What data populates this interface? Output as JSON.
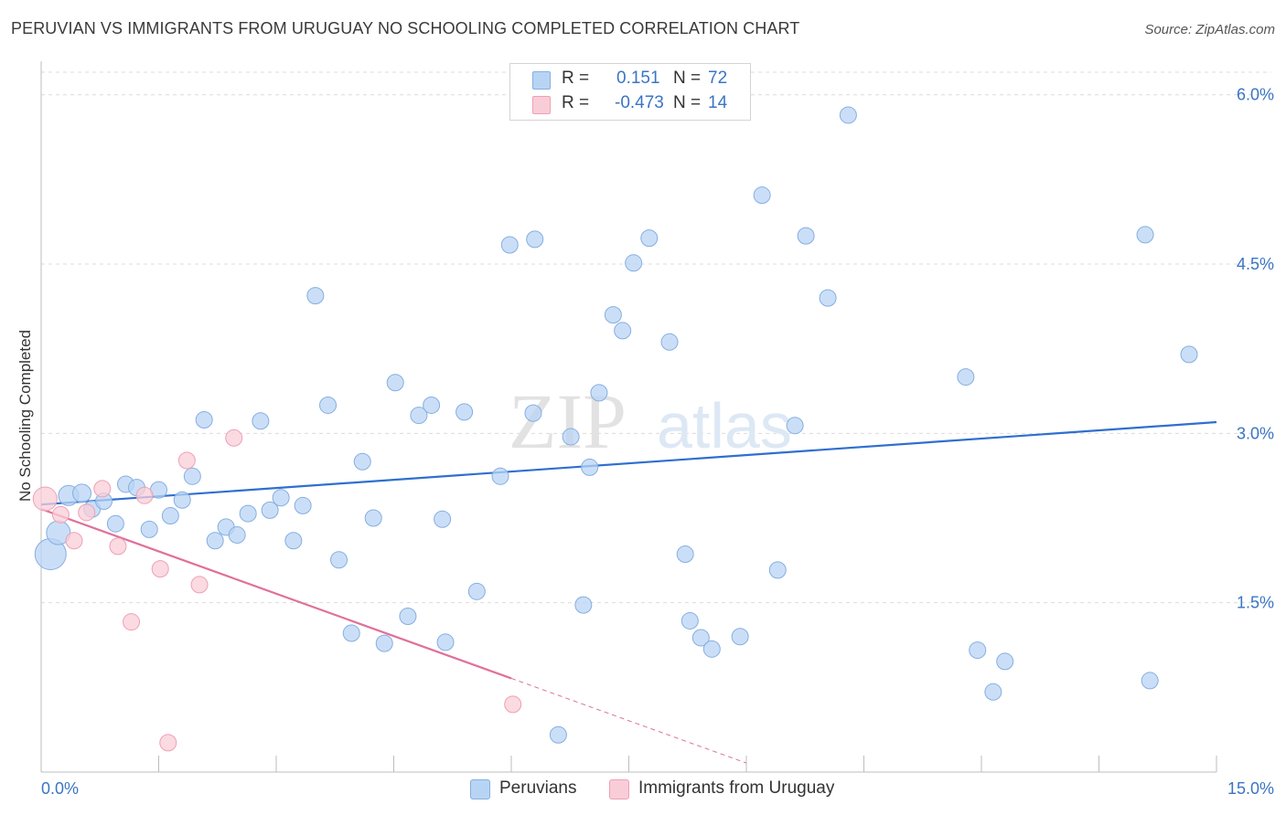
{
  "header": {
    "title": "PERUVIAN VS IMMIGRANTS FROM URUGUAY NO SCHOOLING COMPLETED CORRELATION CHART",
    "source": "Source: ZipAtlas.com"
  },
  "watermark": "ZIPatlas",
  "legend": {
    "r_label": "R =",
    "n_label": "N =",
    "rows": [
      {
        "r": "0.151",
        "n": "72"
      },
      {
        "r": "-0.473",
        "n": "14"
      }
    ]
  },
  "bottom_legend": [
    "Peruvians",
    "Immigrants from Uruguay"
  ],
  "colors": {
    "peruvians_fill": "#b8d4f4",
    "peruvians_stroke": "#86aee0",
    "peruvians_line": "#2f6fcf",
    "uruguay_fill": "#f9cdd8",
    "uruguay_stroke": "#eea0b5",
    "uruguay_line": "#e0709a",
    "tick_label": "#3a75c4",
    "grid": "#dcdcdc"
  },
  "chart_data": {
    "type": "scatter",
    "xlabel": "",
    "ylabel": "No Schooling Completed",
    "xlim": [
      0,
      15
    ],
    "ylim": [
      0,
      6.2
    ],
    "x_tick_labels": [
      "0.0%",
      "15.0%"
    ],
    "y_ticks": [
      1.5,
      3.0,
      4.5,
      6.0
    ],
    "y_tick_labels": [
      "1.5%",
      "3.0%",
      "4.5%",
      "6.0%"
    ],
    "grid": "horizontal dashed",
    "legend_position": "top-center",
    "series": [
      {
        "name": "Peruvians",
        "r": 0.151,
        "n": 72,
        "trend": {
          "x": [
            0,
            15
          ],
          "y": [
            2.37,
            3.1
          ]
        },
        "points": [
          [
            0.12,
            1.93,
            17
          ],
          [
            0.22,
            2.12,
            13
          ],
          [
            0.35,
            2.45,
            11
          ],
          [
            0.52,
            2.47,
            10
          ],
          [
            0.65,
            2.33,
            9
          ],
          [
            0.8,
            2.4,
            9
          ],
          [
            0.95,
            2.2,
            9
          ],
          [
            1.08,
            2.55,
            9
          ],
          [
            1.22,
            2.52,
            9
          ],
          [
            1.38,
            2.15,
            9
          ],
          [
            1.5,
            2.5,
            9
          ],
          [
            1.65,
            2.27,
            9
          ],
          [
            1.8,
            2.41,
            9
          ],
          [
            1.93,
            2.62,
            9
          ],
          [
            2.08,
            3.12,
            9
          ],
          [
            2.22,
            2.05,
            9
          ],
          [
            2.36,
            2.17,
            9
          ],
          [
            2.5,
            2.1,
            9
          ],
          [
            2.64,
            2.29,
            9
          ],
          [
            2.8,
            3.11,
            9
          ],
          [
            2.92,
            2.32,
            9
          ],
          [
            3.06,
            2.43,
            9
          ],
          [
            3.22,
            2.05,
            9
          ],
          [
            3.34,
            2.36,
            9
          ],
          [
            3.5,
            4.22,
            9
          ],
          [
            3.66,
            3.25,
            9
          ],
          [
            3.8,
            1.88,
            9
          ],
          [
            3.96,
            1.23,
            9
          ],
          [
            4.1,
            2.75,
            9
          ],
          [
            4.24,
            2.25,
            9
          ],
          [
            4.38,
            1.14,
            9
          ],
          [
            4.52,
            3.45,
            9
          ],
          [
            4.68,
            1.38,
            9
          ],
          [
            4.82,
            3.16,
            9
          ],
          [
            4.98,
            3.25,
            9
          ],
          [
            5.12,
            2.24,
            9
          ],
          [
            5.16,
            1.15,
            9
          ],
          [
            5.4,
            3.19,
            9
          ],
          [
            5.56,
            1.6,
            9
          ],
          [
            5.86,
            2.62,
            9
          ],
          [
            5.98,
            4.67,
            9
          ],
          [
            6.28,
            3.18,
            9
          ],
          [
            6.3,
            4.72,
            9
          ],
          [
            6.6,
            0.33,
            9
          ],
          [
            6.76,
            2.97,
            9
          ],
          [
            6.92,
            1.48,
            9
          ],
          [
            7.0,
            2.7,
            9
          ],
          [
            7.12,
            3.36,
            9
          ],
          [
            7.3,
            4.05,
            9
          ],
          [
            7.42,
            3.91,
            9
          ],
          [
            7.56,
            4.51,
            9
          ],
          [
            7.76,
            4.73,
            9
          ],
          [
            8.02,
            3.81,
            9
          ],
          [
            8.22,
            1.93,
            9
          ],
          [
            8.28,
            1.34,
            9
          ],
          [
            8.42,
            1.19,
            9
          ],
          [
            8.56,
            1.09,
            9
          ],
          [
            8.92,
            1.2,
            9
          ],
          [
            9.2,
            5.11,
            9
          ],
          [
            9.4,
            1.79,
            9
          ],
          [
            9.62,
            3.07,
            9
          ],
          [
            9.76,
            4.75,
            9
          ],
          [
            10.04,
            4.2,
            9
          ],
          [
            10.3,
            5.82,
            9
          ],
          [
            11.8,
            3.5,
            9
          ],
          [
            11.95,
            1.08,
            9
          ],
          [
            12.15,
            0.71,
            9
          ],
          [
            12.3,
            0.98,
            9
          ],
          [
            14.09,
            4.76,
            9
          ],
          [
            14.15,
            0.81,
            9
          ],
          [
            14.65,
            3.7,
            9
          ],
          [
            7.0,
            1.48,
            0
          ]
        ]
      },
      {
        "name": "Immigrants from Uruguay",
        "r": -0.473,
        "n": 14,
        "trend": {
          "x": [
            0,
            6.0,
            9.0
          ],
          "y": [
            2.33,
            0.83,
            0.08
          ]
        },
        "points": [
          [
            0.05,
            2.42,
            13
          ],
          [
            0.25,
            2.28,
            9
          ],
          [
            0.42,
            2.05,
            9
          ],
          [
            0.58,
            2.3,
            9
          ],
          [
            0.78,
            2.51,
            9
          ],
          [
            0.98,
            2.0,
            9
          ],
          [
            1.15,
            1.33,
            9
          ],
          [
            1.32,
            2.45,
            9
          ],
          [
            1.52,
            1.8,
            9
          ],
          [
            1.62,
            0.26,
            9
          ],
          [
            1.86,
            2.76,
            9
          ],
          [
            2.02,
            1.66,
            9
          ],
          [
            2.46,
            2.96,
            9
          ],
          [
            6.02,
            0.6,
            9
          ]
        ]
      }
    ]
  }
}
